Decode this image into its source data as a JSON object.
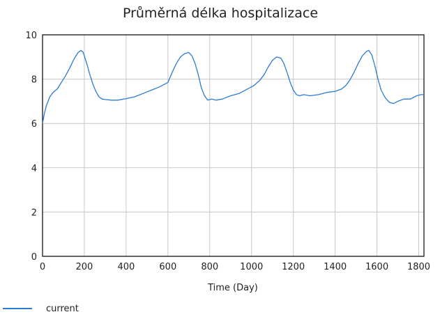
{
  "chart_data": {
    "type": "line",
    "title": "Průměrná délka hospitalizace",
    "xlabel": "Time (Day)",
    "ylabel": "",
    "xlim": [
      0,
      1825
    ],
    "ylim": [
      0,
      10
    ],
    "xticks": [
      0,
      200,
      400,
      600,
      800,
      1000,
      1200,
      1400,
      1600,
      1800
    ],
    "yticks": [
      0,
      2,
      4,
      6,
      8,
      10
    ],
    "grid": true,
    "legend_position": "bottom-left",
    "series": [
      {
        "name": "current",
        "color": "#2b7bd6",
        "x": [
          0,
          10,
          20,
          35,
          50,
          70,
          90,
          110,
          130,
          150,
          170,
          185,
          195,
          205,
          215,
          225,
          240,
          255,
          270,
          285,
          300,
          330,
          360,
          400,
          440,
          480,
          520,
          560,
          600,
          620,
          640,
          660,
          680,
          700,
          715,
          730,
          745,
          760,
          775,
          790,
          810,
          830,
          860,
          900,
          940,
          980,
          1010,
          1040,
          1060,
          1080,
          1100,
          1120,
          1140,
          1155,
          1170,
          1185,
          1200,
          1215,
          1230,
          1250,
          1280,
          1320,
          1360,
          1400,
          1430,
          1450,
          1470,
          1490,
          1510,
          1530,
          1550,
          1560,
          1575,
          1590,
          1605,
          1620,
          1640,
          1660,
          1680,
          1700,
          1730,
          1760,
          1790,
          1810,
          1825
        ],
        "y": [
          6.0,
          6.5,
          6.85,
          7.2,
          7.4,
          7.55,
          7.85,
          8.15,
          8.5,
          8.9,
          9.2,
          9.3,
          9.2,
          8.9,
          8.6,
          8.25,
          7.8,
          7.45,
          7.2,
          7.1,
          7.08,
          7.05,
          7.05,
          7.12,
          7.2,
          7.35,
          7.5,
          7.65,
          7.85,
          8.3,
          8.7,
          9.0,
          9.15,
          9.2,
          9.05,
          8.7,
          8.2,
          7.6,
          7.25,
          7.05,
          7.1,
          7.05,
          7.1,
          7.25,
          7.35,
          7.55,
          7.7,
          7.95,
          8.2,
          8.55,
          8.85,
          9.0,
          8.95,
          8.7,
          8.3,
          7.85,
          7.5,
          7.3,
          7.25,
          7.3,
          7.25,
          7.3,
          7.4,
          7.45,
          7.55,
          7.7,
          7.95,
          8.3,
          8.7,
          9.05,
          9.25,
          9.3,
          9.1,
          8.6,
          8.0,
          7.5,
          7.15,
          6.95,
          6.9,
          7.0,
          7.1,
          7.1,
          7.25,
          7.3,
          7.3
        ]
      }
    ]
  }
}
